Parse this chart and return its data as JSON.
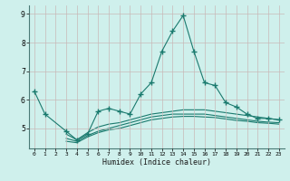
{
  "xlabel": "Humidex (Indice chaleur)",
  "x": [
    0,
    1,
    2,
    3,
    4,
    5,
    6,
    7,
    8,
    9,
    10,
    11,
    12,
    13,
    14,
    15,
    16,
    17,
    18,
    19,
    20,
    21,
    22,
    23
  ],
  "line1": [
    6.3,
    5.5,
    null,
    4.9,
    4.6,
    4.8,
    5.6,
    5.7,
    5.6,
    5.5,
    6.2,
    6.6,
    7.7,
    8.4,
    8.95,
    7.7,
    6.6,
    6.5,
    5.9,
    5.75,
    5.5,
    5.35,
    5.35,
    5.3
  ],
  "line2": [
    null,
    null,
    null,
    4.8,
    4.6,
    4.85,
    5.05,
    5.15,
    5.2,
    5.3,
    5.4,
    5.5,
    5.55,
    5.6,
    5.65,
    5.65,
    5.65,
    5.6,
    5.55,
    5.5,
    5.45,
    5.4,
    5.35,
    5.3
  ],
  "line3": [
    null,
    null,
    null,
    4.65,
    4.55,
    4.75,
    4.9,
    5.0,
    5.1,
    5.2,
    5.3,
    5.4,
    5.45,
    5.5,
    5.5,
    5.5,
    5.5,
    5.45,
    5.4,
    5.35,
    5.3,
    5.25,
    5.22,
    5.2
  ],
  "line4": [
    null,
    null,
    null,
    4.55,
    4.5,
    4.7,
    4.85,
    4.95,
    5.0,
    5.1,
    5.2,
    5.3,
    5.35,
    5.4,
    5.42,
    5.42,
    5.4,
    5.38,
    5.33,
    5.28,
    5.25,
    5.2,
    5.18,
    5.15
  ],
  "color": "#1a7a6e",
  "bg_color": "#cff0ec",
  "grid_color": "#c8b8b8",
  "ylim": [
    4.3,
    9.3
  ],
  "yticks": [
    5,
    6,
    7,
    8,
    9
  ],
  "xticks": [
    0,
    1,
    2,
    3,
    4,
    5,
    6,
    7,
    8,
    9,
    10,
    11,
    12,
    13,
    14,
    15,
    16,
    17,
    18,
    19,
    20,
    21,
    22,
    23
  ],
  "marker": "+",
  "markersize": 4,
  "linewidth": 0.8
}
